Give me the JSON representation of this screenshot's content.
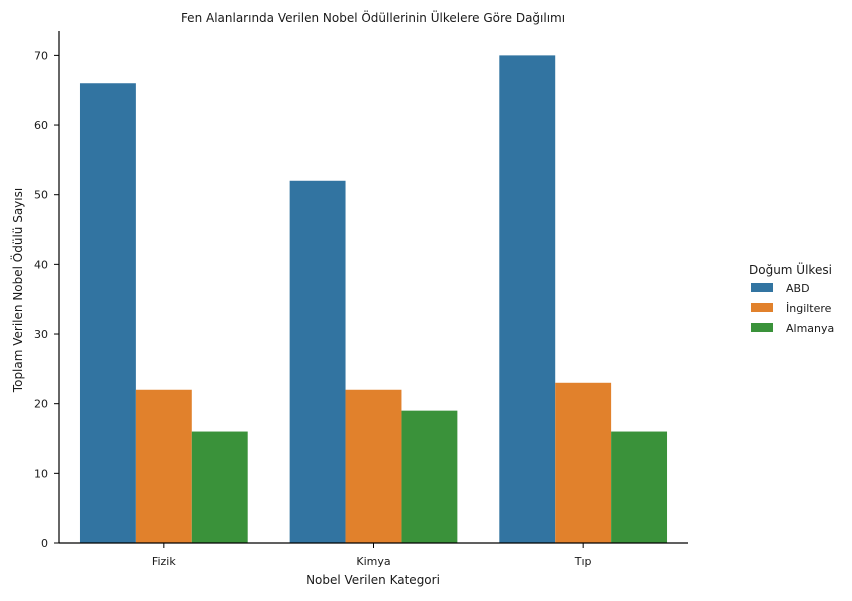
{
  "chart_data": {
    "type": "bar",
    "title": "Fen Alanlarında Verilen Nobel Ödüllerinin Ülkelere Göre Dağılımı",
    "xlabel": "Nobel Verilen Kategori",
    "ylabel": "Toplam Verilen Nobel Ödülü Sayısı",
    "categories": [
      "Fizik",
      "Kimya",
      "Tıp"
    ],
    "series": [
      {
        "name": "ABD",
        "color": "#3274a1",
        "values": [
          66,
          52,
          70
        ]
      },
      {
        "name": "İngiltere",
        "color": "#e1812c",
        "values": [
          22,
          22,
          23
        ]
      },
      {
        "name": "Almanya",
        "color": "#3a923a",
        "values": [
          16,
          19,
          16
        ]
      }
    ],
    "ylim": [
      0,
      73.5
    ],
    "yticks": [
      0,
      10,
      20,
      30,
      40,
      50,
      60,
      70
    ],
    "grid": false,
    "legend": {
      "title": "Doğum Ülkesi",
      "placement": "right-outside"
    }
  }
}
